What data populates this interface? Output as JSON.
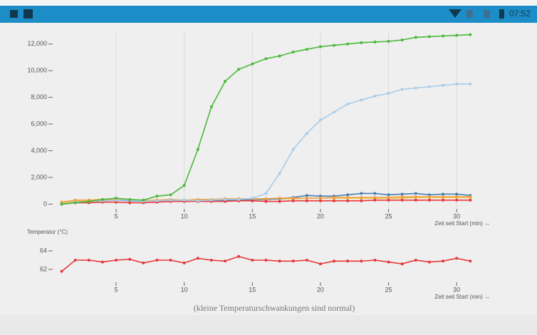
{
  "status_bar": {
    "time": "07:52"
  },
  "chart_data": [
    {
      "type": "line",
      "x": [
        1,
        2,
        3,
        4,
        5,
        6,
        7,
        8,
        9,
        10,
        11,
        12,
        13,
        14,
        15,
        16,
        17,
        18,
        19,
        20,
        21,
        22,
        23,
        24,
        25,
        26,
        27,
        28,
        29,
        30,
        31
      ],
      "series": [
        {
          "color": "#e8c340",
          "values": [
            100,
            200,
            250,
            250,
            300,
            300,
            250,
            300,
            300,
            300,
            300,
            350,
            350,
            350,
            400,
            400,
            400,
            400,
            450,
            450,
            450,
            450,
            450,
            450,
            450,
            450,
            500,
            500,
            500,
            500,
            500
          ]
        },
        {
          "color": "#4a7fb3",
          "values": [
            0,
            100,
            200,
            250,
            300,
            250,
            200,
            250,
            300,
            300,
            300,
            250,
            300,
            300,
            350,
            350,
            400,
            500,
            650,
            600,
            600,
            700,
            800,
            800,
            700,
            750,
            800,
            700,
            750,
            750,
            650
          ]
        },
        {
          "color": "#f0a040",
          "values": [
            150,
            300,
            300,
            350,
            350,
            300,
            250,
            300,
            350,
            300,
            350,
            350,
            400,
            400,
            400,
            400,
            450,
            450,
            450,
            450,
            500,
            500,
            500,
            500,
            500,
            550,
            550,
            550,
            550,
            550,
            550
          ]
        },
        {
          "color": "#e8383a",
          "values": [
            0,
            100,
            100,
            150,
            150,
            100,
            100,
            150,
            200,
            200,
            200,
            200,
            200,
            250,
            250,
            200,
            200,
            250,
            250,
            250,
            250,
            250,
            250,
            300,
            300,
            300,
            300,
            300,
            300,
            300,
            300
          ]
        },
        {
          "color": "#a9cde9",
          "values": [
            0,
            150,
            200,
            250,
            300,
            300,
            200,
            250,
            300,
            300,
            250,
            300,
            350,
            350,
            450,
            800,
            2300,
            4100,
            5300,
            6300,
            6900,
            7500,
            7800,
            8100,
            8300,
            8600,
            8700,
            8800,
            8900,
            9000,
            9000
          ]
        },
        {
          "color": "#4cb83c",
          "values": [
            0,
            100,
            200,
            350,
            450,
            350,
            300,
            600,
            700,
            1400,
            4100,
            7300,
            9200,
            10100,
            10500,
            10900,
            11100,
            11400,
            11600,
            11800,
            11900,
            12000,
            12100,
            12150,
            12200,
            12300,
            12500,
            12550,
            12600,
            12650,
            12700
          ]
        }
      ],
      "xlim": [
        0.5,
        32.5
      ],
      "xticks": [
        5,
        10,
        15,
        20,
        25,
        30
      ],
      "ylim": [
        -300,
        13000
      ],
      "yticks": [
        0,
        {
          "value": 2000,
          "label": "2,000"
        },
        {
          "value": 4000,
          "label": "4,000"
        },
        {
          "value": 6000,
          "label": "6,000"
        },
        {
          "value": 8000,
          "label": "8,000"
        },
        {
          "value": 10000,
          "label": "10,000"
        },
        {
          "value": 12000,
          "label": "12,000"
        }
      ],
      "x_label": "Zeit seit Start (min) →",
      "grid": true
    },
    {
      "type": "line",
      "x": [
        1,
        2,
        3,
        4,
        5,
        6,
        7,
        8,
        9,
        10,
        11,
        12,
        13,
        14,
        15,
        16,
        17,
        18,
        19,
        20,
        21,
        22,
        23,
        24,
        25,
        26,
        27,
        28,
        29,
        30,
        31
      ],
      "series": [
        {
          "color": "#e8383a",
          "values": [
            61.8,
            63.0,
            63.0,
            62.8,
            63.0,
            63.1,
            62.7,
            63.0,
            63.0,
            62.7,
            63.2,
            63.0,
            62.9,
            63.4,
            63.0,
            63.0,
            62.9,
            62.9,
            63.0,
            62.6,
            62.9,
            62.9,
            62.9,
            63.0,
            62.8,
            62.6,
            63.0,
            62.8,
            62.9,
            63.2,
            62.9
          ]
        }
      ],
      "xlim": [
        0.5,
        32.5
      ],
      "xticks": [
        5,
        10,
        15,
        20,
        25,
        30
      ],
      "ylim": [
        60.7,
        65.3
      ],
      "yticks": [
        62,
        64
      ],
      "y_label": "Temperatur (°C)",
      "x_label": "Zeit seit Start (min) →",
      "grid": false,
      "annotation": "(kleine Temperaturschwankungen sind normal)"
    }
  ]
}
